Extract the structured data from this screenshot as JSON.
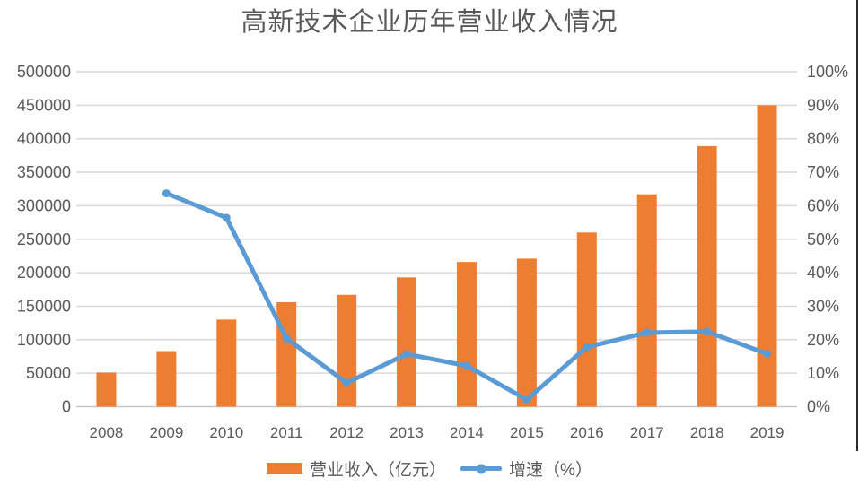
{
  "title": "高新技术企业历年营业收入情况",
  "legend": [
    {
      "label": "营业收入（亿元）",
      "swatch": "bar-swatch"
    },
    {
      "label": "增速（%）",
      "swatch": "line-swatch"
    }
  ],
  "colors": {
    "bar": "#ED7D31",
    "line": "#5B9BD5",
    "gridline": "#D9D9D9",
    "axis_line": "#C6C6C6",
    "axis_text": "#595959",
    "title_text": "#595959",
    "right_border": "#2E2E2E"
  },
  "chart_data": {
    "type": "bar+line combo",
    "title": "高新技术企业历年营业收入情况",
    "categories": [
      "2008",
      "2009",
      "2010",
      "2011",
      "2012",
      "2013",
      "2014",
      "2015",
      "2016",
      "2017",
      "2018",
      "2019"
    ],
    "series": [
      {
        "name": "营业收入（亿元）",
        "type": "bar",
        "axis": "left",
        "values": [
          51000,
          83000,
          130000,
          156000,
          167000,
          193000,
          216000,
          221000,
          260000,
          317000,
          389000,
          450000
        ]
      },
      {
        "name": "增速（%）",
        "type": "line",
        "axis": "right",
        "values": [
          null,
          63.7,
          56.4,
          20.4,
          7.1,
          15.7,
          12.2,
          2.1,
          17.8,
          22.1,
          22.4,
          15.8
        ]
      }
    ],
    "left_axis": {
      "min": 0,
      "max": 500000,
      "step": 50000,
      "tick_labels": [
        "0",
        "50000",
        "100000",
        "150000",
        "200000",
        "250000",
        "300000",
        "350000",
        "400000",
        "450000",
        "500000"
      ]
    },
    "right_axis": {
      "min": 0,
      "max": 100,
      "step": 10,
      "tick_labels": [
        "0%",
        "10%",
        "20%",
        "30%",
        "40%",
        "50%",
        "60%",
        "70%",
        "80%",
        "90%",
        "100%"
      ]
    },
    "grid": "horizontal",
    "legend_position": "bottom-center"
  }
}
